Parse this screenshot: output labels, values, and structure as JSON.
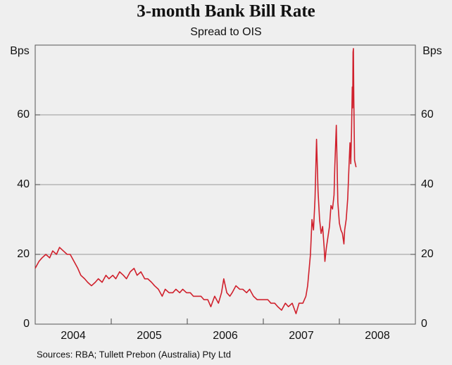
{
  "chart_data": {
    "type": "line",
    "title": "3-month Bank Bill Rate",
    "subtitle": "Spread to OIS",
    "y_label": "Bps",
    "source": "Sources: RBA; Tullett Prebon (Australia) Pty Ltd",
    "xlim": [
      2004,
      2009
    ],
    "xticks": [
      2005,
      2006,
      2007,
      2008
    ],
    "x_band_labels": [
      "2004",
      "2005",
      "2006",
      "2007",
      "2008"
    ],
    "ylim": [
      0,
      80
    ],
    "yticks": [
      0,
      20,
      40,
      60
    ],
    "grid": true,
    "x": [
      2004.0,
      2004.05,
      2004.09,
      2004.14,
      2004.19,
      2004.23,
      2004.28,
      2004.32,
      2004.37,
      2004.42,
      2004.46,
      2004.51,
      2004.56,
      2004.6,
      2004.65,
      2004.69,
      2004.74,
      2004.79,
      2004.83,
      2004.88,
      2004.93,
      2004.97,
      2005.02,
      2005.06,
      2005.11,
      2005.16,
      2005.2,
      2005.25,
      2005.3,
      2005.34,
      2005.39,
      2005.44,
      2005.48,
      2005.53,
      2005.57,
      2005.62,
      2005.67,
      2005.71,
      2005.76,
      2005.81,
      2005.85,
      2005.9,
      2005.94,
      2005.99,
      2006.04,
      2006.08,
      2006.13,
      2006.18,
      2006.22,
      2006.27,
      2006.31,
      2006.36,
      2006.41,
      2006.45,
      2006.48,
      2006.52,
      2006.56,
      2006.59,
      2006.64,
      2006.69,
      2006.73,
      2006.78,
      2006.82,
      2006.87,
      2006.92,
      2006.96,
      2007.01,
      2007.06,
      2007.1,
      2007.15,
      2007.19,
      2007.24,
      2007.29,
      2007.33,
      2007.38,
      2007.43,
      2007.47,
      2007.52,
      2007.56,
      2007.583,
      2007.62,
      2007.64,
      2007.66,
      2007.68,
      2007.7,
      2007.72,
      2007.74,
      2007.76,
      2007.78,
      2007.8,
      2007.81,
      2007.83,
      2007.85,
      2007.87,
      2007.89,
      2007.91,
      2007.93,
      2007.94,
      2007.96,
      2007.98,
      2008.0,
      2008.02,
      2008.04,
      2008.06,
      2008.07,
      2008.09,
      2008.11,
      2008.13,
      2008.14,
      2008.15,
      2008.16,
      2008.17,
      2008.175,
      2008.18,
      2008.185,
      2008.19,
      2008.2,
      2008.21,
      2008.22
    ],
    "series": [
      {
        "color": "#d0202c",
        "values": [
          16,
          18,
          19,
          20,
          19,
          21,
          20,
          22,
          21,
          20,
          20,
          18,
          16,
          14,
          13,
          12,
          11,
          12,
          13,
          12,
          14,
          13,
          14,
          13,
          15,
          14,
          13,
          15,
          16,
          14,
          15,
          13,
          13,
          12,
          11,
          10,
          8,
          10,
          9,
          9,
          10,
          9,
          10,
          9,
          9,
          8,
          8,
          8,
          7,
          7,
          5,
          8,
          6,
          9,
          13,
          9,
          8,
          9,
          11,
          10,
          10,
          9,
          10,
          8,
          7,
          7,
          7,
          7,
          6,
          6,
          5,
          4,
          6,
          5,
          6,
          3,
          6,
          6,
          8,
          11,
          20,
          30,
          27,
          36,
          53,
          38,
          30,
          26,
          28,
          22,
          18,
          22,
          25,
          28,
          34,
          33,
          37,
          45,
          57,
          35,
          29,
          27,
          26,
          23,
          27,
          30,
          36,
          47,
          52,
          46,
          55,
          68,
          62,
          78,
          79,
          65,
          47,
          46,
          45
        ]
      }
    ]
  }
}
